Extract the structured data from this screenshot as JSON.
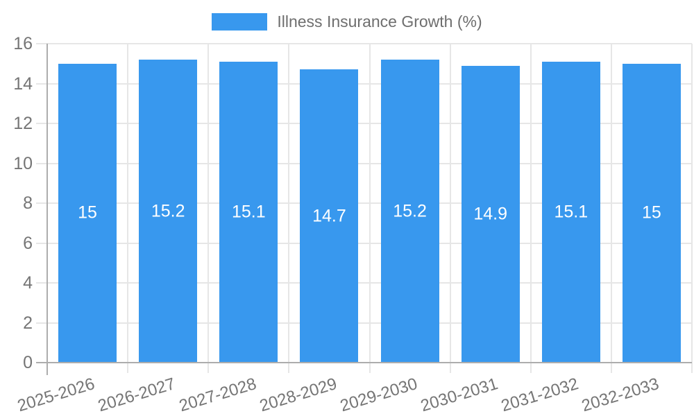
{
  "chart_data": {
    "type": "bar",
    "title": "Illness Insurance Growth (%)",
    "legend_entries": [
      "Illness Insurance Growth (%)"
    ],
    "legend_position": "top-center",
    "categories": [
      "2025-2026",
      "2026-2027",
      "2027-2028",
      "2028-2029",
      "2029-2030",
      "2030-2031",
      "2031-2032",
      "2032-2033"
    ],
    "series": [
      {
        "name": "Illness Insurance Growth (%)",
        "values": [
          15,
          15.2,
          15.1,
          14.7,
          15.2,
          14.9,
          15.1,
          15
        ]
      }
    ],
    "value_labels": [
      "15",
      "15.2",
      "15.1",
      "14.7",
      "15.2",
      "14.9",
      "15.1",
      "15"
    ],
    "xlabel": "",
    "ylabel": "",
    "ylim": [
      0,
      16
    ],
    "ytick_step": 2,
    "ytick_labels": [
      "0",
      "2",
      "4",
      "6",
      "8",
      "10",
      "12",
      "14",
      "16"
    ],
    "grid": true,
    "x_label_rotation_deg": -17,
    "colors": {
      "bar": "#3898EE",
      "grid": "#E6E6E6",
      "axis_line": "#ADADAD",
      "axis_text": "#757575",
      "legend_text": "#6E6E6E",
      "value_text": "#FFFFFF",
      "background": "#FFFFFF"
    }
  }
}
